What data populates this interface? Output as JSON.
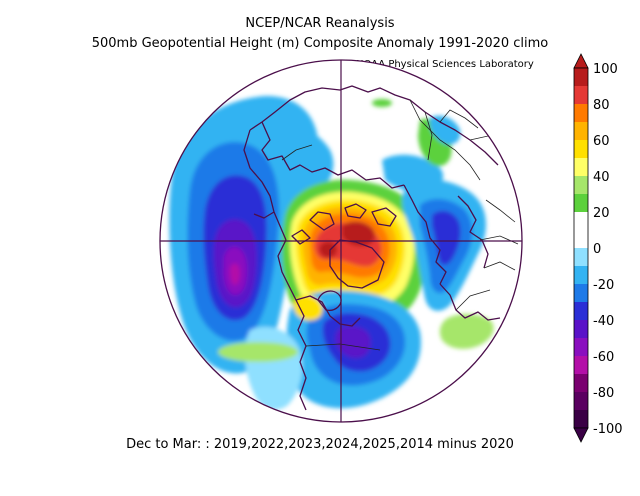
{
  "title_line1": "NCEP/NCAR Reanalysis",
  "title_line2": "500mb Geopotential Height (m) Composite Anomaly 1991-2020 climo",
  "credit": "NOAA Physical Sciences Laboratory",
  "caption": "Dec to Mar: : 2019,2022,2023,2024,2025,2014 minus 2020",
  "colorbar": {
    "ticks": [
      "100",
      "80",
      "60",
      "40",
      "20",
      "0",
      "-20",
      "-40",
      "-60",
      "-80",
      "-100"
    ],
    "colors": [
      "#b71c1c",
      "#e53935",
      "#ff7a00",
      "#ffb300",
      "#ffe000",
      "#ffff66",
      "#a6e66a",
      "#5cd13c",
      "#ffffff",
      "#ffffff",
      "#8fe0ff",
      "#33b3f2",
      "#1e7ae8",
      "#2b2fd6",
      "#5a12c8",
      "#8a0fbf",
      "#b30fa8",
      "#7a0070",
      "#5a0060",
      "#3a0045"
    ]
  }
}
